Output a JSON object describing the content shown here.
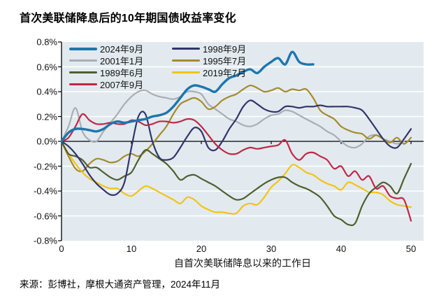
{
  "title": "首次美联储降息后的10年期国债收益率变化",
  "source": "来源：彭博社，摩根大通资产管理，2024年11月",
  "chart_data": {
    "type": "line",
    "title": "首次美联储降息后的10年期国债收益率变化",
    "xlabel": "自首次美联储降息以来的工作日",
    "ylabel": "",
    "xlim": [
      0,
      50
    ],
    "ylim": [
      -0.8,
      0.8
    ],
    "x_ticks": [
      0,
      10,
      20,
      30,
      40,
      50
    ],
    "y_ticks": [
      "0.8%",
      "0.6%",
      "0.4%",
      "0.2%",
      "0.0%",
      "-0.2%",
      "-0.4%",
      "-0.6%",
      "-0.8%"
    ],
    "y_tick_values": [
      0.8,
      0.6,
      0.4,
      0.2,
      0.0,
      -0.2,
      -0.4,
      -0.6,
      -0.8
    ],
    "grid": true,
    "gridline_color": "#ffffff",
    "plot_bg": "#e2eaef",
    "axis_color": "#000000",
    "legend_position": "top-left",
    "x_unit": "工作日",
    "y_unit": "%",
    "series": [
      {
        "name": "2024年9月",
        "color": "#1c76ae",
        "width": 3.4,
        "z": 7,
        "values": [
          0,
          0.07,
          0.1,
          0.1,
          0.09,
          0.08,
          0.1,
          0.14,
          0.16,
          0.15,
          0.16,
          0.17,
          0.18,
          0.2,
          0.21,
          0.23,
          0.28,
          0.35,
          0.42,
          0.45,
          0.44,
          0.42,
          0.4,
          0.46,
          0.51,
          0.53,
          0.56,
          0.58,
          0.55,
          0.6,
          0.64,
          0.67,
          0.62,
          0.72,
          0.64,
          0.62,
          0.62
        ]
      },
      {
        "name": "2001年1月",
        "color": "#a9aeb3",
        "width": 2.2,
        "z": 1,
        "values": [
          0,
          0.12,
          0.27,
          0.08,
          0.01,
          0.0,
          0.08,
          0.15,
          0.22,
          0.3,
          0.36,
          0.4,
          0.41,
          0.38,
          0.36,
          0.35,
          0.34,
          0.36,
          0.4,
          0.4,
          0.38,
          0.3,
          0.26,
          0.22,
          0.18,
          0.16,
          0.13,
          0.12,
          0.14,
          0.18,
          0.21,
          0.22,
          0.25,
          0.24,
          0.21,
          0.18,
          0.15,
          0.12,
          0.08,
          0.05,
          0.0,
          -0.04,
          -0.05,
          -0.02,
          0.04,
          0.05,
          0.02,
          0.0,
          -0.02,
          0.0
        ]
      },
      {
        "name": "1989年6月",
        "color": "#4f5e2f",
        "width": 2.2,
        "z": 4,
        "values": [
          0,
          -0.1,
          -0.12,
          -0.15,
          -0.21,
          -0.21,
          -0.25,
          -0.29,
          -0.31,
          -0.28,
          -0.25,
          -0.15,
          -0.07,
          -0.1,
          -0.14,
          -0.18,
          -0.24,
          -0.31,
          -0.28,
          -0.27,
          -0.3,
          -0.33,
          -0.36,
          -0.4,
          -0.44,
          -0.47,
          -0.46,
          -0.42,
          -0.38,
          -0.34,
          -0.31,
          -0.29,
          -0.29,
          -0.33,
          -0.36,
          -0.38,
          -0.41,
          -0.45,
          -0.52,
          -0.6,
          -0.63,
          -0.67,
          -0.66,
          -0.52,
          -0.42,
          -0.37,
          -0.33,
          -0.36,
          -0.42,
          -0.3,
          -0.18
        ]
      },
      {
        "name": "2007年9月",
        "color": "#c22746",
        "width": 2.2,
        "z": 6,
        "values": [
          0,
          0.03,
          0.12,
          0.22,
          0.17,
          0.14,
          0.14,
          0.15,
          0.14,
          0.14,
          0.17,
          0.16,
          0.13,
          0.14,
          0.16,
          0.16,
          0.15,
          0.16,
          0.18,
          0.17,
          0.12,
          0.05,
          -0.02,
          -0.07,
          -0.1,
          -0.1,
          -0.07,
          -0.05,
          -0.06,
          -0.05,
          -0.04,
          -0.03,
          0.01,
          -0.1,
          -0.15,
          -0.1,
          -0.09,
          -0.12,
          -0.15,
          -0.22,
          -0.2,
          -0.28,
          -0.24,
          -0.31,
          -0.28,
          -0.38,
          -0.36,
          -0.44,
          -0.46,
          -0.47,
          -0.64
        ]
      },
      {
        "name": "1998年9月",
        "color": "#31356b",
        "width": 2.2,
        "z": 5,
        "values": [
          0,
          -0.04,
          -0.1,
          -0.18,
          -0.27,
          -0.34,
          -0.39,
          -0.43,
          -0.42,
          -0.33,
          -0.05,
          0.2,
          0.22,
          0.0,
          -0.13,
          -0.15,
          -0.13,
          -0.05,
          0.04,
          0.11,
          0.08,
          -0.05,
          -0.07,
          0.0,
          0.1,
          0.18,
          0.28,
          0.33,
          0.3,
          0.26,
          0.24,
          0.24,
          0.28,
          0.28,
          0.27,
          0.28,
          0.28,
          0.29,
          0.28,
          0.28,
          0.28,
          0.28,
          0.27,
          0.25,
          0.18,
          0.1,
          0.02,
          -0.04,
          -0.05,
          0.02,
          0.1
        ]
      },
      {
        "name": "1995年7月",
        "color": "#a68a2d",
        "width": 2.2,
        "z": 2,
        "values": [
          0,
          -0.12,
          -0.22,
          -0.24,
          -0.18,
          -0.14,
          -0.15,
          -0.17,
          -0.16,
          -0.12,
          -0.1,
          -0.12,
          -0.08,
          -0.02,
          0.05,
          0.12,
          0.22,
          0.3,
          0.33,
          0.35,
          0.32,
          0.26,
          0.28,
          0.33,
          0.36,
          0.38,
          0.42,
          0.45,
          0.43,
          0.4,
          0.41,
          0.43,
          0.4,
          0.42,
          0.41,
          0.42,
          0.35,
          0.25,
          0.21,
          0.18,
          0.12,
          0.09,
          0.07,
          0.06,
          0.02,
          0.05,
          0.02,
          -0.01,
          0.03,
          -0.02,
          0.03
        ]
      },
      {
        "name": "2019年7月",
        "color": "#f3c317",
        "width": 2.2,
        "z": 3,
        "values": [
          0,
          -0.1,
          -0.18,
          -0.25,
          -0.3,
          -0.33,
          -0.36,
          -0.38,
          -0.38,
          -0.42,
          -0.44,
          -0.4,
          -0.36,
          -0.38,
          -0.41,
          -0.44,
          -0.47,
          -0.5,
          -0.45,
          -0.47,
          -0.52,
          -0.55,
          -0.57,
          -0.57,
          -0.58,
          -0.58,
          -0.52,
          -0.5,
          -0.51,
          -0.45,
          -0.37,
          -0.32,
          -0.26,
          -0.19,
          -0.21,
          -0.25,
          -0.27,
          -0.31,
          -0.34,
          -0.36,
          -0.39,
          -0.33,
          -0.35,
          -0.38,
          -0.41,
          -0.41,
          -0.43,
          -0.48,
          -0.51,
          -0.52,
          -0.53
        ]
      }
    ]
  }
}
